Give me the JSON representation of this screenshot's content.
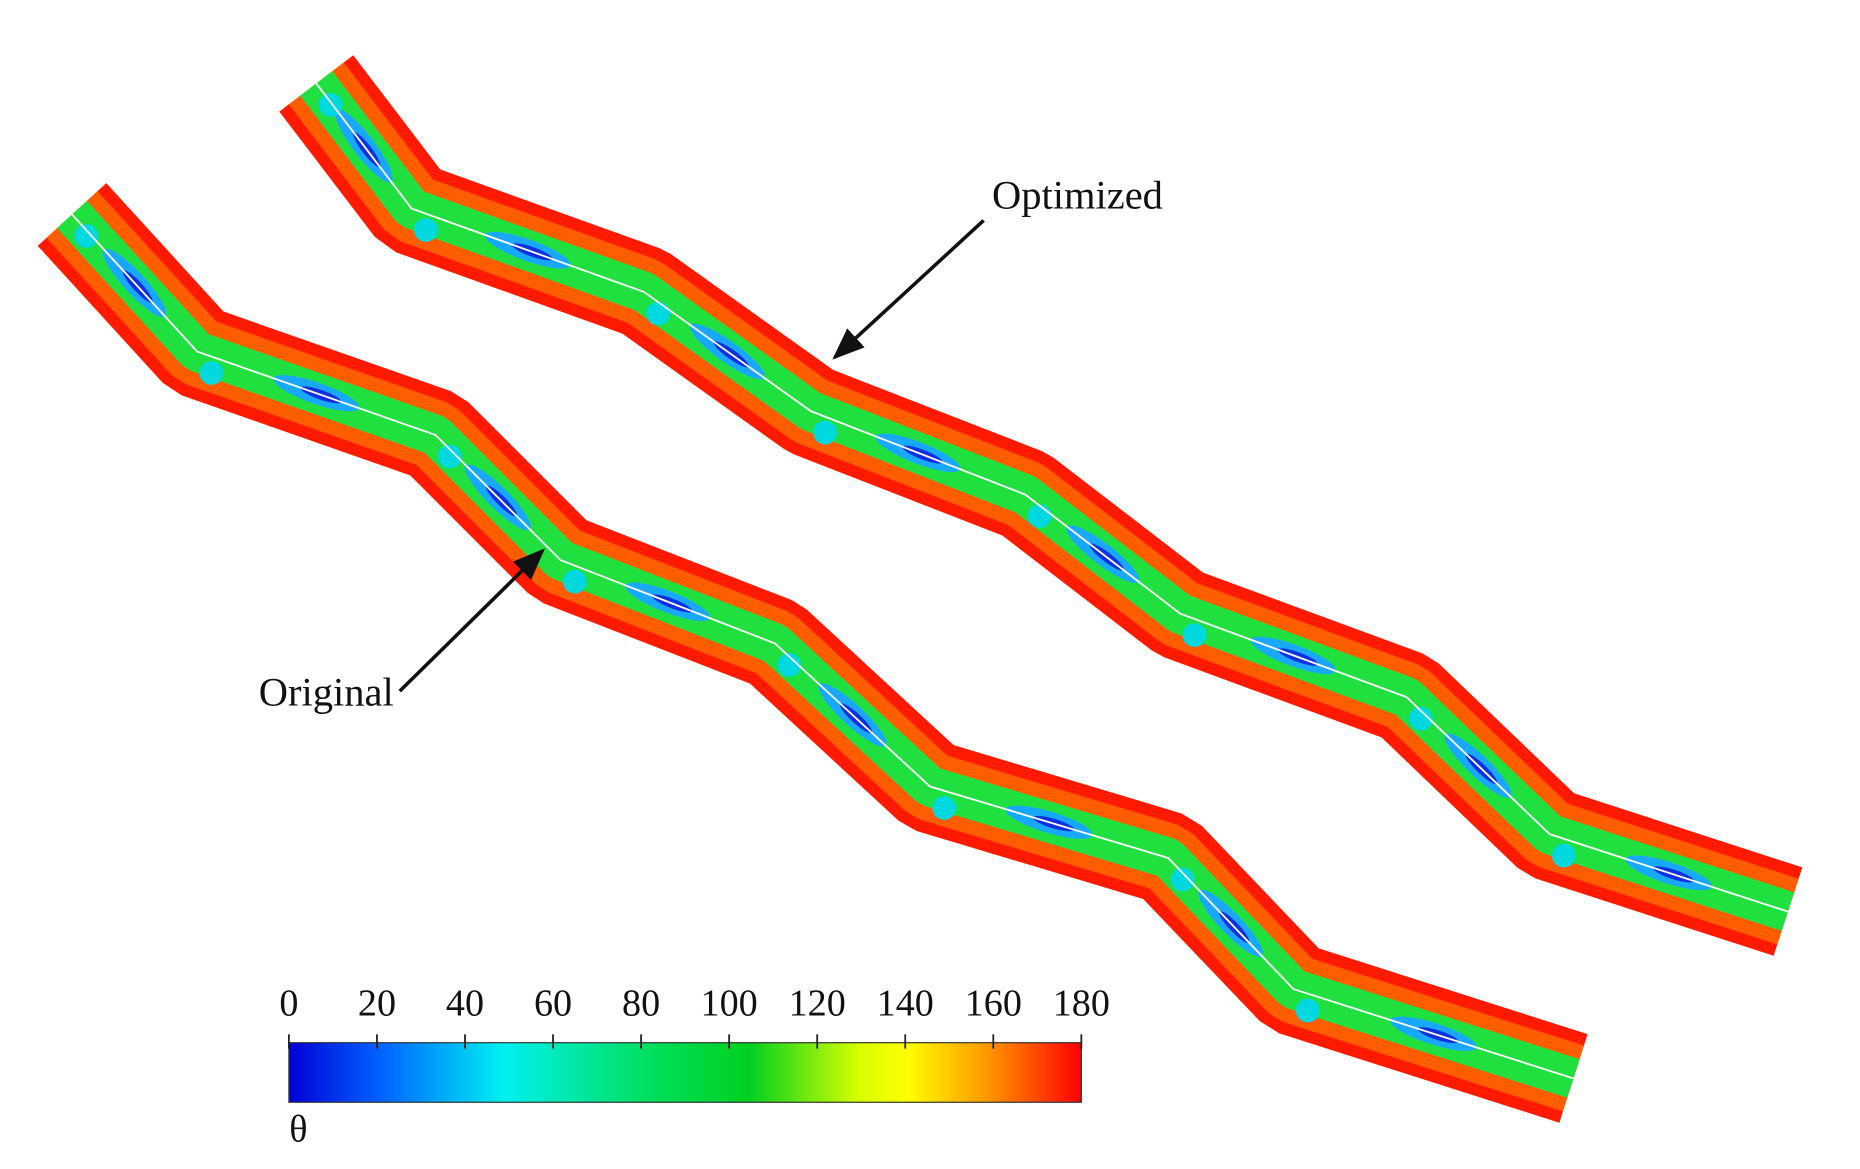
{
  "annotations": {
    "optimized": "Optimized",
    "original": "Original"
  },
  "colorbar": {
    "label": "θ",
    "range": [
      0,
      180
    ],
    "ticks": [
      0,
      20,
      40,
      60,
      80,
      100,
      120,
      140,
      160,
      180
    ]
  }
}
